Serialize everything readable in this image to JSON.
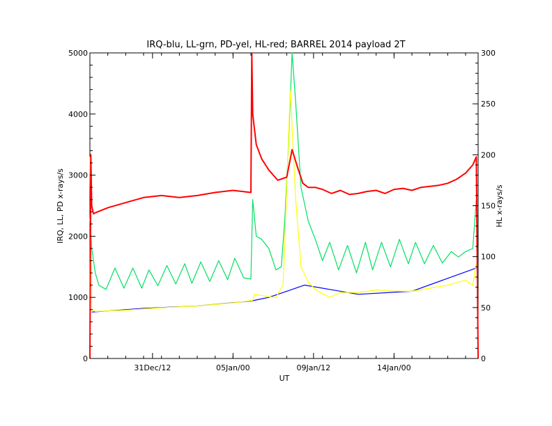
{
  "chart_data": {
    "type": "line",
    "title": "IRQ-blu, LL-grn, PD-yel, HL-red; BARREL 2014 payload 2T",
    "xlabel": "UT",
    "ylabel": "IRQ, LL, PD x-rays/s",
    "ylabel_right": "HL x-rays/s",
    "x_ticks": [
      "31Dec/12",
      "05Jan/00",
      "09Jan/12",
      "14Jan/00"
    ],
    "x_tick_days": [
      3.5,
      8,
      12.5,
      17
    ],
    "xlim_days": [
      0,
      21.7
    ],
    "ylim": [
      0,
      5000
    ],
    "y_ticks": [
      "0",
      "1000",
      "2000",
      "3000",
      "4000",
      "5000"
    ],
    "ylim_right": [
      0,
      300
    ],
    "y_ticks_right": [
      "0",
      "50",
      "100",
      "150",
      "200",
      "250",
      "300"
    ],
    "grid": false,
    "series": [
      {
        "name": "IRQ",
        "color": "#0000ff",
        "axis": "left",
        "x": [
          0.1,
          3,
          6,
          9,
          10,
          11,
          12,
          15,
          18,
          21.6
        ],
        "y": [
          760,
          820,
          860,
          940,
          1000,
          1100,
          1200,
          1050,
          1100,
          1480
        ]
      },
      {
        "name": "LL",
        "color": "#00e060",
        "axis": "left",
        "x": [
          0.0,
          0.1,
          0.3,
          0.5,
          0.9,
          1.4,
          1.9,
          2.4,
          2.9,
          3.3,
          3.8,
          4.3,
          4.8,
          5.3,
          5.7,
          6.2,
          6.7,
          7.2,
          7.7,
          8.1,
          8.6,
          9.0,
          9.1,
          9.3,
          9.6,
          10.0,
          10.4,
          10.7,
          10.9,
          11.1,
          11.3,
          11.5,
          11.8,
          12.2,
          12.6,
          13.0,
          13.4,
          13.9,
          14.4,
          14.9,
          15.4,
          15.8,
          16.3,
          16.8,
          17.3,
          17.8,
          18.2,
          18.7,
          19.2,
          19.7,
          20.2,
          20.6,
          21.0,
          21.4,
          21.6
        ],
        "y": [
          2300,
          1800,
          1400,
          1200,
          1130,
          1480,
          1150,
          1480,
          1150,
          1450,
          1190,
          1520,
          1220,
          1550,
          1230,
          1580,
          1260,
          1600,
          1290,
          1640,
          1320,
          1300,
          2600,
          2000,
          1950,
          1800,
          1450,
          1500,
          2300,
          3500,
          5000,
          4200,
          2800,
          2250,
          1950,
          1600,
          1900,
          1450,
          1850,
          1400,
          1900,
          1450,
          1900,
          1500,
          1950,
          1550,
          1900,
          1550,
          1850,
          1560,
          1750,
          1660,
          1750,
          1800,
          2600
        ]
      },
      {
        "name": "PD",
        "color": "#ffff00",
        "axis": "left",
        "x": [
          0.0,
          0.1,
          0.3,
          2.0,
          4.0,
          6.0,
          8.0,
          9.1,
          9.2,
          10.0,
          10.4,
          10.8,
          11.0,
          11.2,
          11.5,
          11.8,
          12.2,
          12.6,
          13.0,
          13.4,
          14.0,
          15.0,
          16.0,
          17.0,
          18.0,
          19.0,
          20.0,
          21.0,
          21.4,
          21.6
        ],
        "y": [
          3300,
          800,
          770,
          790,
          830,
          860,
          910,
          950,
          1050,
          1010,
          1000,
          1200,
          2800,
          4400,
          2600,
          1500,
          1250,
          1130,
          1060,
          1000,
          1080,
          1080,
          1120,
          1100,
          1100,
          1150,
          1200,
          1280,
          1200,
          1550
        ]
      },
      {
        "name": "HL",
        "color": "#ff0000",
        "axis": "right",
        "x": [
          0.0,
          0.05,
          0.1,
          0.2,
          0.3,
          1.0,
          2.0,
          3.0,
          4.0,
          5.0,
          6.0,
          7.0,
          8.0,
          9.0,
          9.05,
          9.1,
          9.3,
          9.6,
          10.0,
          10.5,
          11.0,
          11.3,
          11.6,
          11.9,
          12.2,
          12.6,
          13.0,
          13.5,
          14.0,
          14.5,
          15.0,
          15.5,
          16.0,
          16.5,
          17.0,
          17.5,
          18.0,
          18.5,
          19.0,
          19.5,
          20.0,
          20.5,
          21.0,
          21.4,
          21.6,
          21.7
        ],
        "y": [
          0,
          200,
          150,
          142,
          143,
          148,
          153,
          158,
          160,
          158,
          160,
          163,
          165,
          163,
          300,
          240,
          210,
          196,
          185,
          175,
          178,
          205,
          188,
          172,
          168,
          168,
          166,
          162,
          165,
          161,
          162,
          164,
          165,
          162,
          166,
          167,
          165,
          168,
          169,
          170,
          172,
          176,
          182,
          190,
          198,
          0
        ]
      }
    ]
  }
}
